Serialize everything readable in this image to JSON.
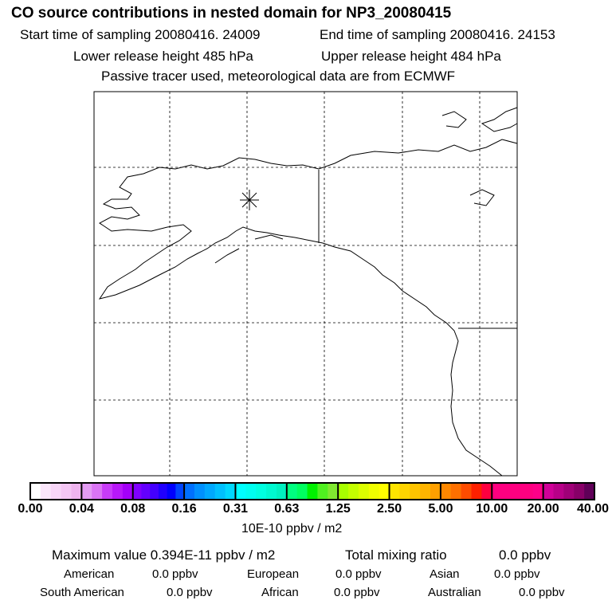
{
  "title": "CO  source contributions in nested domain for NP3_20080415",
  "start_time": "Start time of sampling 20080416. 24009",
  "end_time": "End time of sampling 20080416. 24153",
  "lower_height": "Lower release height  485 hPa",
  "upper_height": "Upper release height  484 hPa",
  "tracer_info": "Passive tracer used, meteorological data are from ECMWF",
  "colorbar": {
    "ticks": [
      "0.00",
      "0.04",
      "0.08",
      "0.16",
      "0.31",
      "0.63",
      "1.25",
      "2.50",
      "5.00",
      "10.00",
      "20.00",
      "40.00"
    ],
    "unit": "10E-10 ppbv / m2",
    "segments": [
      [
        "#ffffff",
        "#fbe6fb",
        "#f8d6f8",
        "#f4c6f4",
        "#efb4ef"
      ],
      [
        "#e49cf4",
        "#da74f4",
        "#c83cf8",
        "#b818f8",
        "#a400f8"
      ],
      [
        "#8000ff",
        "#6400ff",
        "#4400ff",
        "#2000ff",
        "#0000ff",
        "#0044ff"
      ],
      [
        "#0070ff",
        "#0090ff",
        "#00a8ff",
        "#00c0ff",
        "#00d8ff"
      ],
      [
        "#00ffff",
        "#00fff0",
        "#00ffe0",
        "#00f8d0",
        "#00f0c0"
      ],
      [
        "#00ff80",
        "#00ff60",
        "#00f000",
        "#50f020",
        "#80e830"
      ],
      [
        "#a8ff00",
        "#c4ff00",
        "#dcff00",
        "#f0ff00",
        "#ffff00"
      ],
      [
        "#ffe400",
        "#ffd400",
        "#ffc400",
        "#ffb400",
        "#ffa000"
      ],
      [
        "#ff8800",
        "#ff7000",
        "#ff4c00",
        "#ff2000",
        "#ff0040"
      ],
      [
        "#ff0080",
        "#ff0080",
        "#ff0080",
        "#ff0080",
        "#ff0088"
      ],
      [
        "#d00098",
        "#b80088",
        "#a00078",
        "#880068",
        "#600058"
      ]
    ]
  },
  "maximum": "Maximum value  0.394E-11 ppbv / m2",
  "total": "Total mixing ratio",
  "total_value": "0.0 ppbv",
  "regions": [
    {
      "name": "American",
      "value": "0.0 ppbv"
    },
    {
      "name": "European",
      "value": "0.0 ppbv"
    },
    {
      "name": "Asian",
      "value": "0.0 ppbv"
    },
    {
      "name": "South American",
      "value": "0.0 ppbv"
    },
    {
      "name": "African",
      "value": "0.0 ppbv"
    },
    {
      "name": "Australian",
      "value": "0.0 ppbv"
    }
  ]
}
